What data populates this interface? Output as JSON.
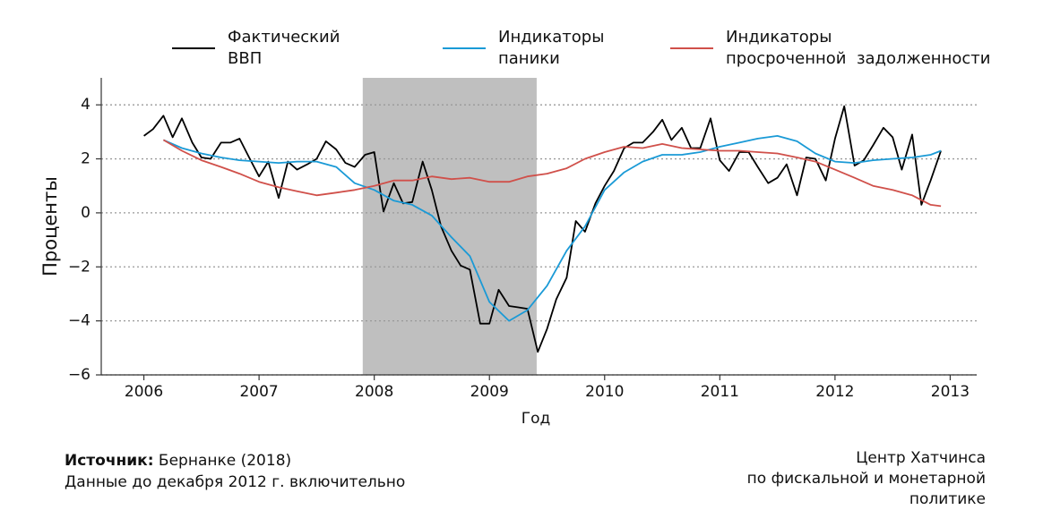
{
  "chart_data": {
    "type": "line",
    "xlabel": "Год",
    "ylabel": "Проценты",
    "xlim": [
      2005.63,
      2013.23
    ],
    "ylim": [
      -6,
      5
    ],
    "xticks": [
      2006,
      2007,
      2008,
      2009,
      2010,
      2011,
      2012,
      2013
    ],
    "yticks": [
      {
        "value": -6,
        "label": "−6"
      },
      {
        "value": -4,
        "label": "−4"
      },
      {
        "value": -2,
        "label": "−2"
      },
      0,
      2,
      4
    ],
    "grid": true,
    "shade": [
      2007.9,
      2009.41
    ],
    "shade_color": "#bfbfbf",
    "series": [
      {
        "name": "Фактический\nВВП",
        "color": "#000000",
        "x": [
          2006,
          2006.08,
          2006.17,
          2006.25,
          2006.33,
          2006.42,
          2006.5,
          2006.58,
          2006.67,
          2006.75,
          2006.83,
          2006.92,
          2007,
          2007.08,
          2007.17,
          2007.25,
          2007.33,
          2007.42,
          2007.5,
          2007.58,
          2007.67,
          2007.75,
          2007.83,
          2007.92,
          2008,
          2008.08,
          2008.17,
          2008.25,
          2008.33,
          2008.42,
          2008.5,
          2008.58,
          2008.67,
          2008.75,
          2008.83,
          2008.92,
          2009,
          2009.08,
          2009.17,
          2009.25,
          2009.33,
          2009.42,
          2009.5,
          2009.58,
          2009.67,
          2009.75,
          2009.83,
          2009.92,
          2010,
          2010.08,
          2010.17,
          2010.25,
          2010.33,
          2010.42,
          2010.5,
          2010.58,
          2010.67,
          2010.75,
          2010.83,
          2010.92,
          2011,
          2011.08,
          2011.17,
          2011.25,
          2011.33,
          2011.42,
          2011.5,
          2011.58,
          2011.67,
          2011.75,
          2011.83,
          2011.92,
          2012,
          2012.08,
          2012.17,
          2012.25,
          2012.33,
          2012.42,
          2012.5,
          2012.58,
          2012.67,
          2012.75,
          2012.83,
          2012.92
        ],
        "values": [
          2.85,
          3.1,
          3.6,
          2.8,
          3.5,
          2.6,
          2.05,
          2.0,
          2.6,
          2.6,
          2.75,
          2.0,
          1.35,
          1.9,
          0.55,
          1.9,
          1.6,
          1.8,
          2.0,
          2.65,
          2.35,
          1.85,
          1.7,
          2.15,
          2.25,
          0.05,
          1.1,
          0.35,
          0.4,
          1.9,
          0.85,
          -0.5,
          -1.4,
          -1.95,
          -2.1,
          -4.1,
          -4.1,
          -2.85,
          -3.45,
          -3.5,
          -3.55,
          -5.15,
          -4.3,
          -3.2,
          -2.4,
          -0.3,
          -0.7,
          0.35,
          1.0,
          1.55,
          2.4,
          2.6,
          2.6,
          3.0,
          3.45,
          2.7,
          3.15,
          2.4,
          2.4,
          3.5,
          1.95,
          1.55,
          2.25,
          2.25,
          1.7,
          1.1,
          1.3,
          1.8,
          0.65,
          2.05,
          2.0,
          1.2,
          2.75,
          3.95,
          1.75,
          1.95,
          2.5,
          3.15,
          2.8,
          1.6,
          2.9,
          0.3,
          1.2,
          2.3
        ]
      },
      {
        "name": "Индикаторы\nпаники",
        "color": "#1a9ad6",
        "x": [
          2006.17,
          2006.33,
          2006.5,
          2006.67,
          2006.83,
          2007,
          2007.17,
          2007.33,
          2007.5,
          2007.67,
          2007.83,
          2008,
          2008.17,
          2008.33,
          2008.5,
          2008.67,
          2008.83,
          2009,
          2009.17,
          2009.33,
          2009.5,
          2009.67,
          2009.83,
          2010,
          2010.17,
          2010.33,
          2010.5,
          2010.67,
          2010.83,
          2011,
          2011.17,
          2011.33,
          2011.5,
          2011.67,
          2011.83,
          2012,
          2012.17,
          2012.33,
          2012.5,
          2012.67,
          2012.83,
          2012.92
        ],
        "values": [
          2.7,
          2.4,
          2.2,
          2.05,
          1.95,
          1.9,
          1.85,
          1.9,
          1.9,
          1.7,
          1.1,
          0.85,
          0.45,
          0.3,
          -0.1,
          -0.9,
          -1.6,
          -3.3,
          -4.0,
          -3.6,
          -2.7,
          -1.4,
          -0.5,
          0.85,
          1.5,
          1.9,
          2.15,
          2.15,
          2.25,
          2.45,
          2.6,
          2.75,
          2.85,
          2.65,
          2.2,
          1.9,
          1.85,
          1.95,
          2.0,
          2.05,
          2.15,
          2.3
        ]
      },
      {
        "name": "Индикаторы\nпросроченной  задолженности",
        "color": "#d0504a",
        "x": [
          2006.17,
          2006.33,
          2006.5,
          2006.67,
          2006.83,
          2007,
          2007.17,
          2007.33,
          2007.5,
          2007.67,
          2007.83,
          2008,
          2008.17,
          2008.33,
          2008.5,
          2008.67,
          2008.83,
          2009,
          2009.17,
          2009.33,
          2009.5,
          2009.67,
          2009.83,
          2010,
          2010.17,
          2010.33,
          2010.5,
          2010.67,
          2010.83,
          2011,
          2011.17,
          2011.33,
          2011.5,
          2011.67,
          2011.83,
          2012,
          2012.17,
          2012.33,
          2012.5,
          2012.67,
          2012.83,
          2012.92
        ],
        "values": [
          2.7,
          2.3,
          1.95,
          1.7,
          1.45,
          1.15,
          0.95,
          0.8,
          0.65,
          0.75,
          0.85,
          1.0,
          1.2,
          1.2,
          1.35,
          1.25,
          1.3,
          1.15,
          1.15,
          1.35,
          1.45,
          1.65,
          2.0,
          2.25,
          2.45,
          2.4,
          2.55,
          2.4,
          2.35,
          2.3,
          2.3,
          2.25,
          2.2,
          2.05,
          1.9,
          1.6,
          1.3,
          1.0,
          0.85,
          0.65,
          0.3,
          0.25
        ]
      }
    ],
    "source_label": "Источник:",
    "source": "Бернанке (2018)",
    "note": "Данные до декабря 2012 г. включительно",
    "credit": "Центр Хатчинса\nпо фискальной и монетарной\nполитике"
  }
}
